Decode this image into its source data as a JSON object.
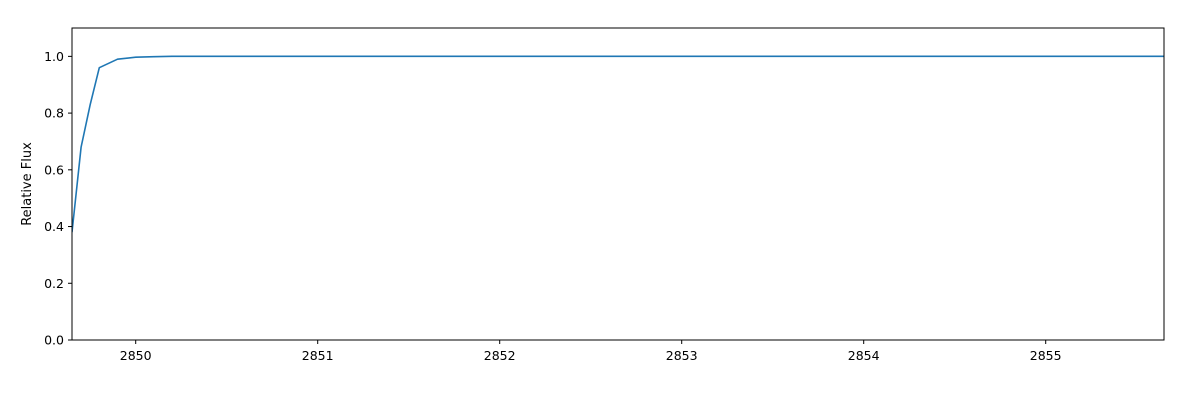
{
  "chart_data": {
    "type": "line",
    "title": "",
    "xlabel": "",
    "ylabel": "Relative Flux",
    "xlim": [
      2849.65,
      2855.65
    ],
    "ylim": [
      0.0,
      1.1
    ],
    "x_ticks": [
      2850,
      2851,
      2852,
      2853,
      2854,
      2855
    ],
    "y_ticks": [
      0.0,
      0.2,
      0.4,
      0.6,
      0.8,
      1.0
    ],
    "x_tick_labels": [
      "2850",
      "2851",
      "2852",
      "2853",
      "2854",
      "2855"
    ],
    "y_tick_labels": [
      "0.0",
      "0.2",
      "0.4",
      "0.6",
      "0.8",
      "1.0"
    ],
    "grid": false,
    "legend": "none",
    "series": [
      {
        "color": "#1f77b4",
        "x": [
          2849.65,
          2849.7,
          2849.75,
          2849.8,
          2849.9,
          2850.0,
          2850.1,
          2850.2,
          2850.3,
          2850.5,
          2851.0,
          2852.0,
          2853.0,
          2854.0,
          2855.0,
          2855.65
        ],
        "y": [
          0.38,
          0.68,
          0.83,
          0.96,
          0.99,
          0.997,
          0.999,
          1.0,
          1.0,
          1.0,
          1.0,
          1.0,
          1.0,
          1.0,
          1.0,
          1.0
        ]
      }
    ]
  }
}
